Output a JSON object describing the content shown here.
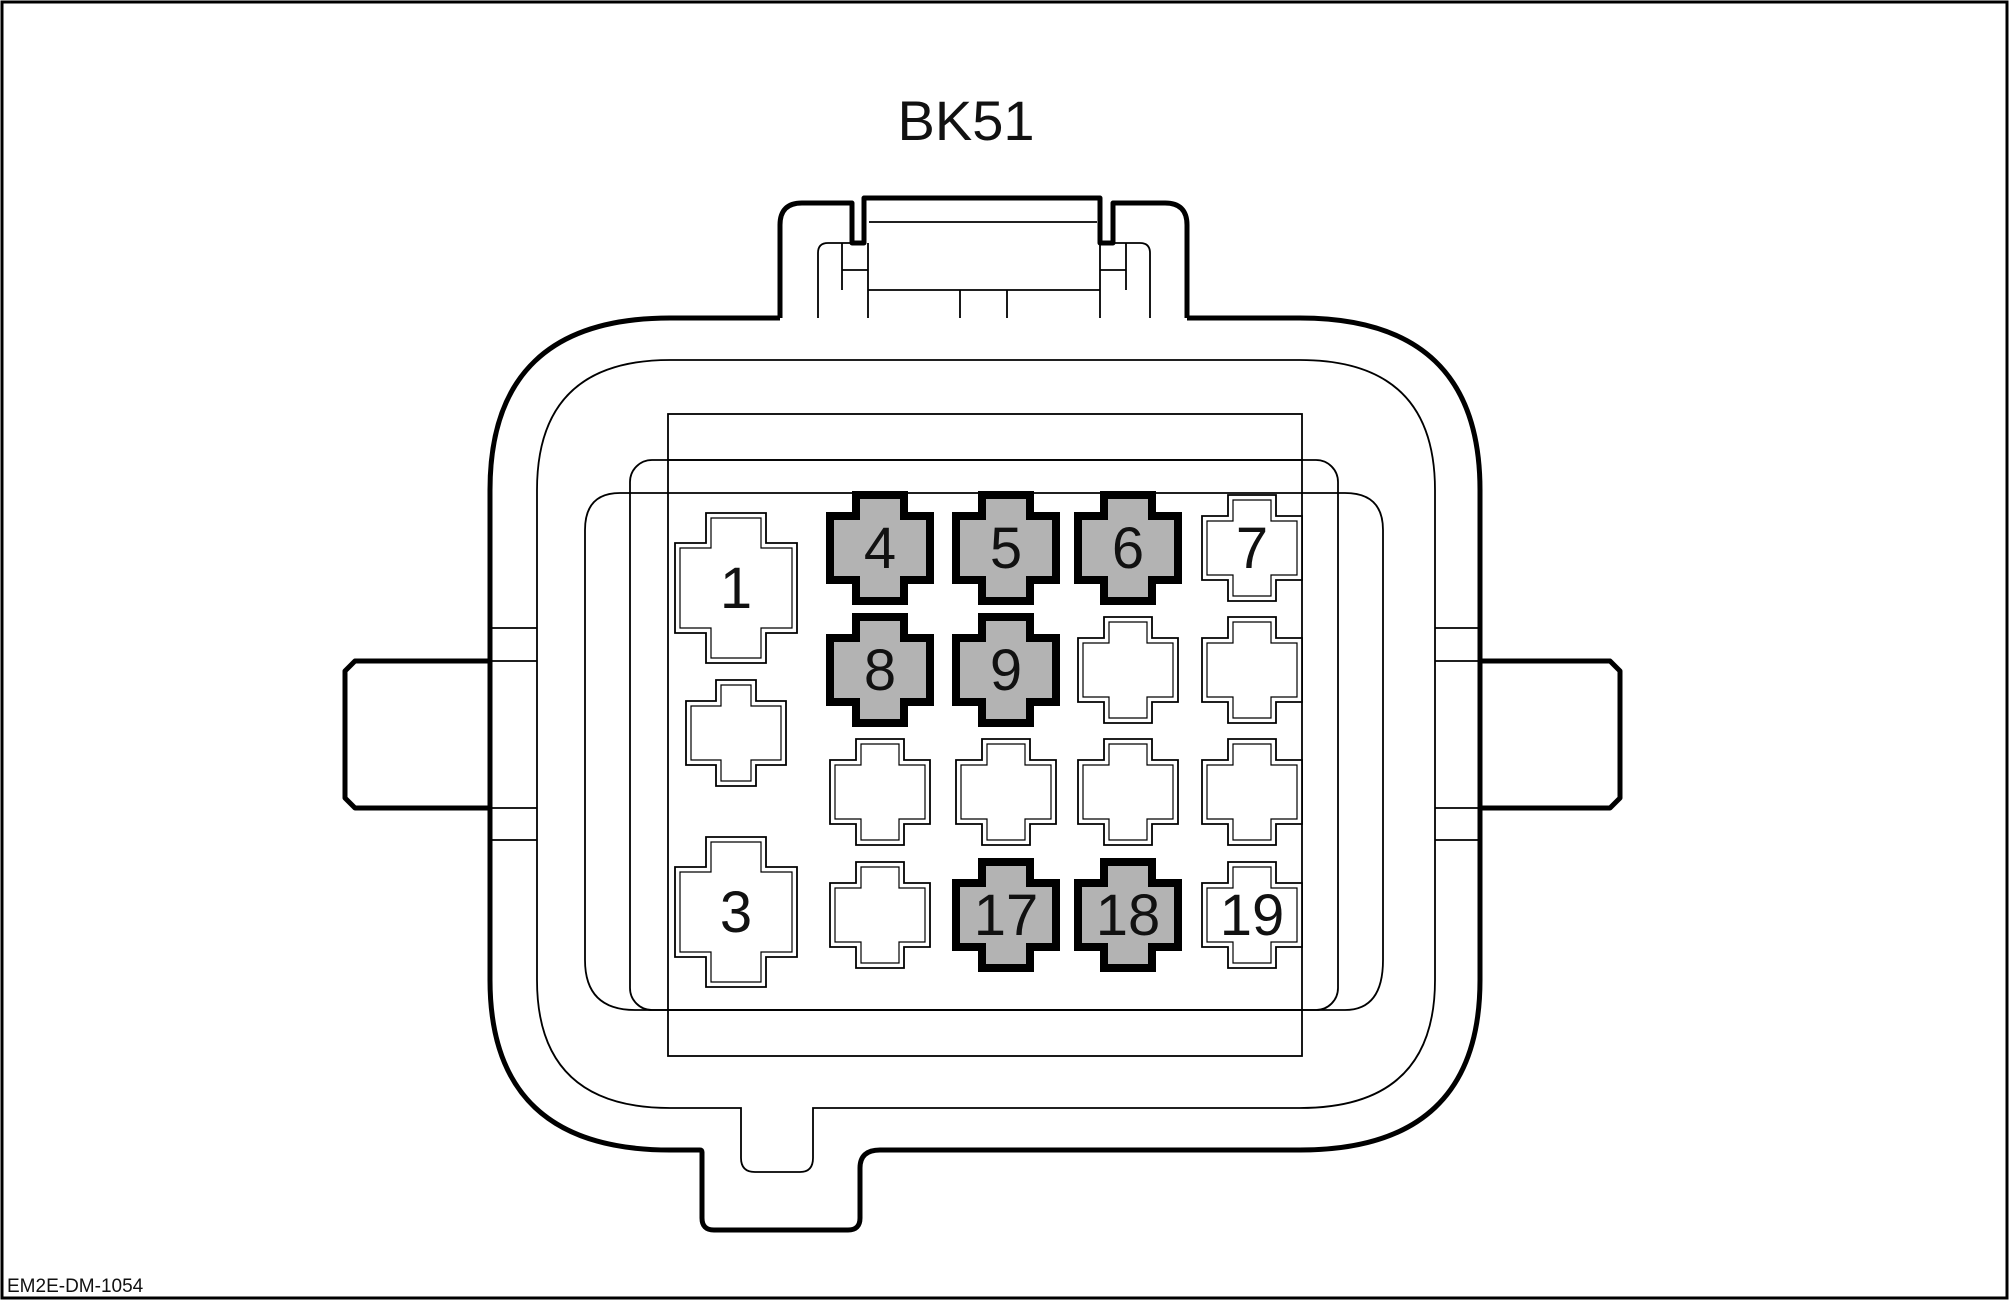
{
  "connector": {
    "id": "BK51",
    "drawing_code": "EM2E-DM-1054"
  },
  "colors": {
    "outline": "#000000",
    "background": "#ffffff",
    "highlight_fill": "#b3b3b3"
  },
  "pins": [
    {
      "label": "1",
      "highlighted": false
    },
    {
      "label": "",
      "highlighted": false
    },
    {
      "label": "3",
      "highlighted": false
    },
    {
      "label": "4",
      "highlighted": true
    },
    {
      "label": "5",
      "highlighted": true
    },
    {
      "label": "6",
      "highlighted": true
    },
    {
      "label": "7",
      "highlighted": false
    },
    {
      "label": "8",
      "highlighted": true
    },
    {
      "label": "9",
      "highlighted": true
    },
    {
      "label": "",
      "highlighted": false
    },
    {
      "label": "",
      "highlighted": false
    },
    {
      "label": "",
      "highlighted": false
    },
    {
      "label": "",
      "highlighted": false
    },
    {
      "label": "",
      "highlighted": false
    },
    {
      "label": "",
      "highlighted": false
    },
    {
      "label": "",
      "highlighted": false
    },
    {
      "label": "17",
      "highlighted": true
    },
    {
      "label": "18",
      "highlighted": true
    },
    {
      "label": "19",
      "highlighted": false
    }
  ]
}
